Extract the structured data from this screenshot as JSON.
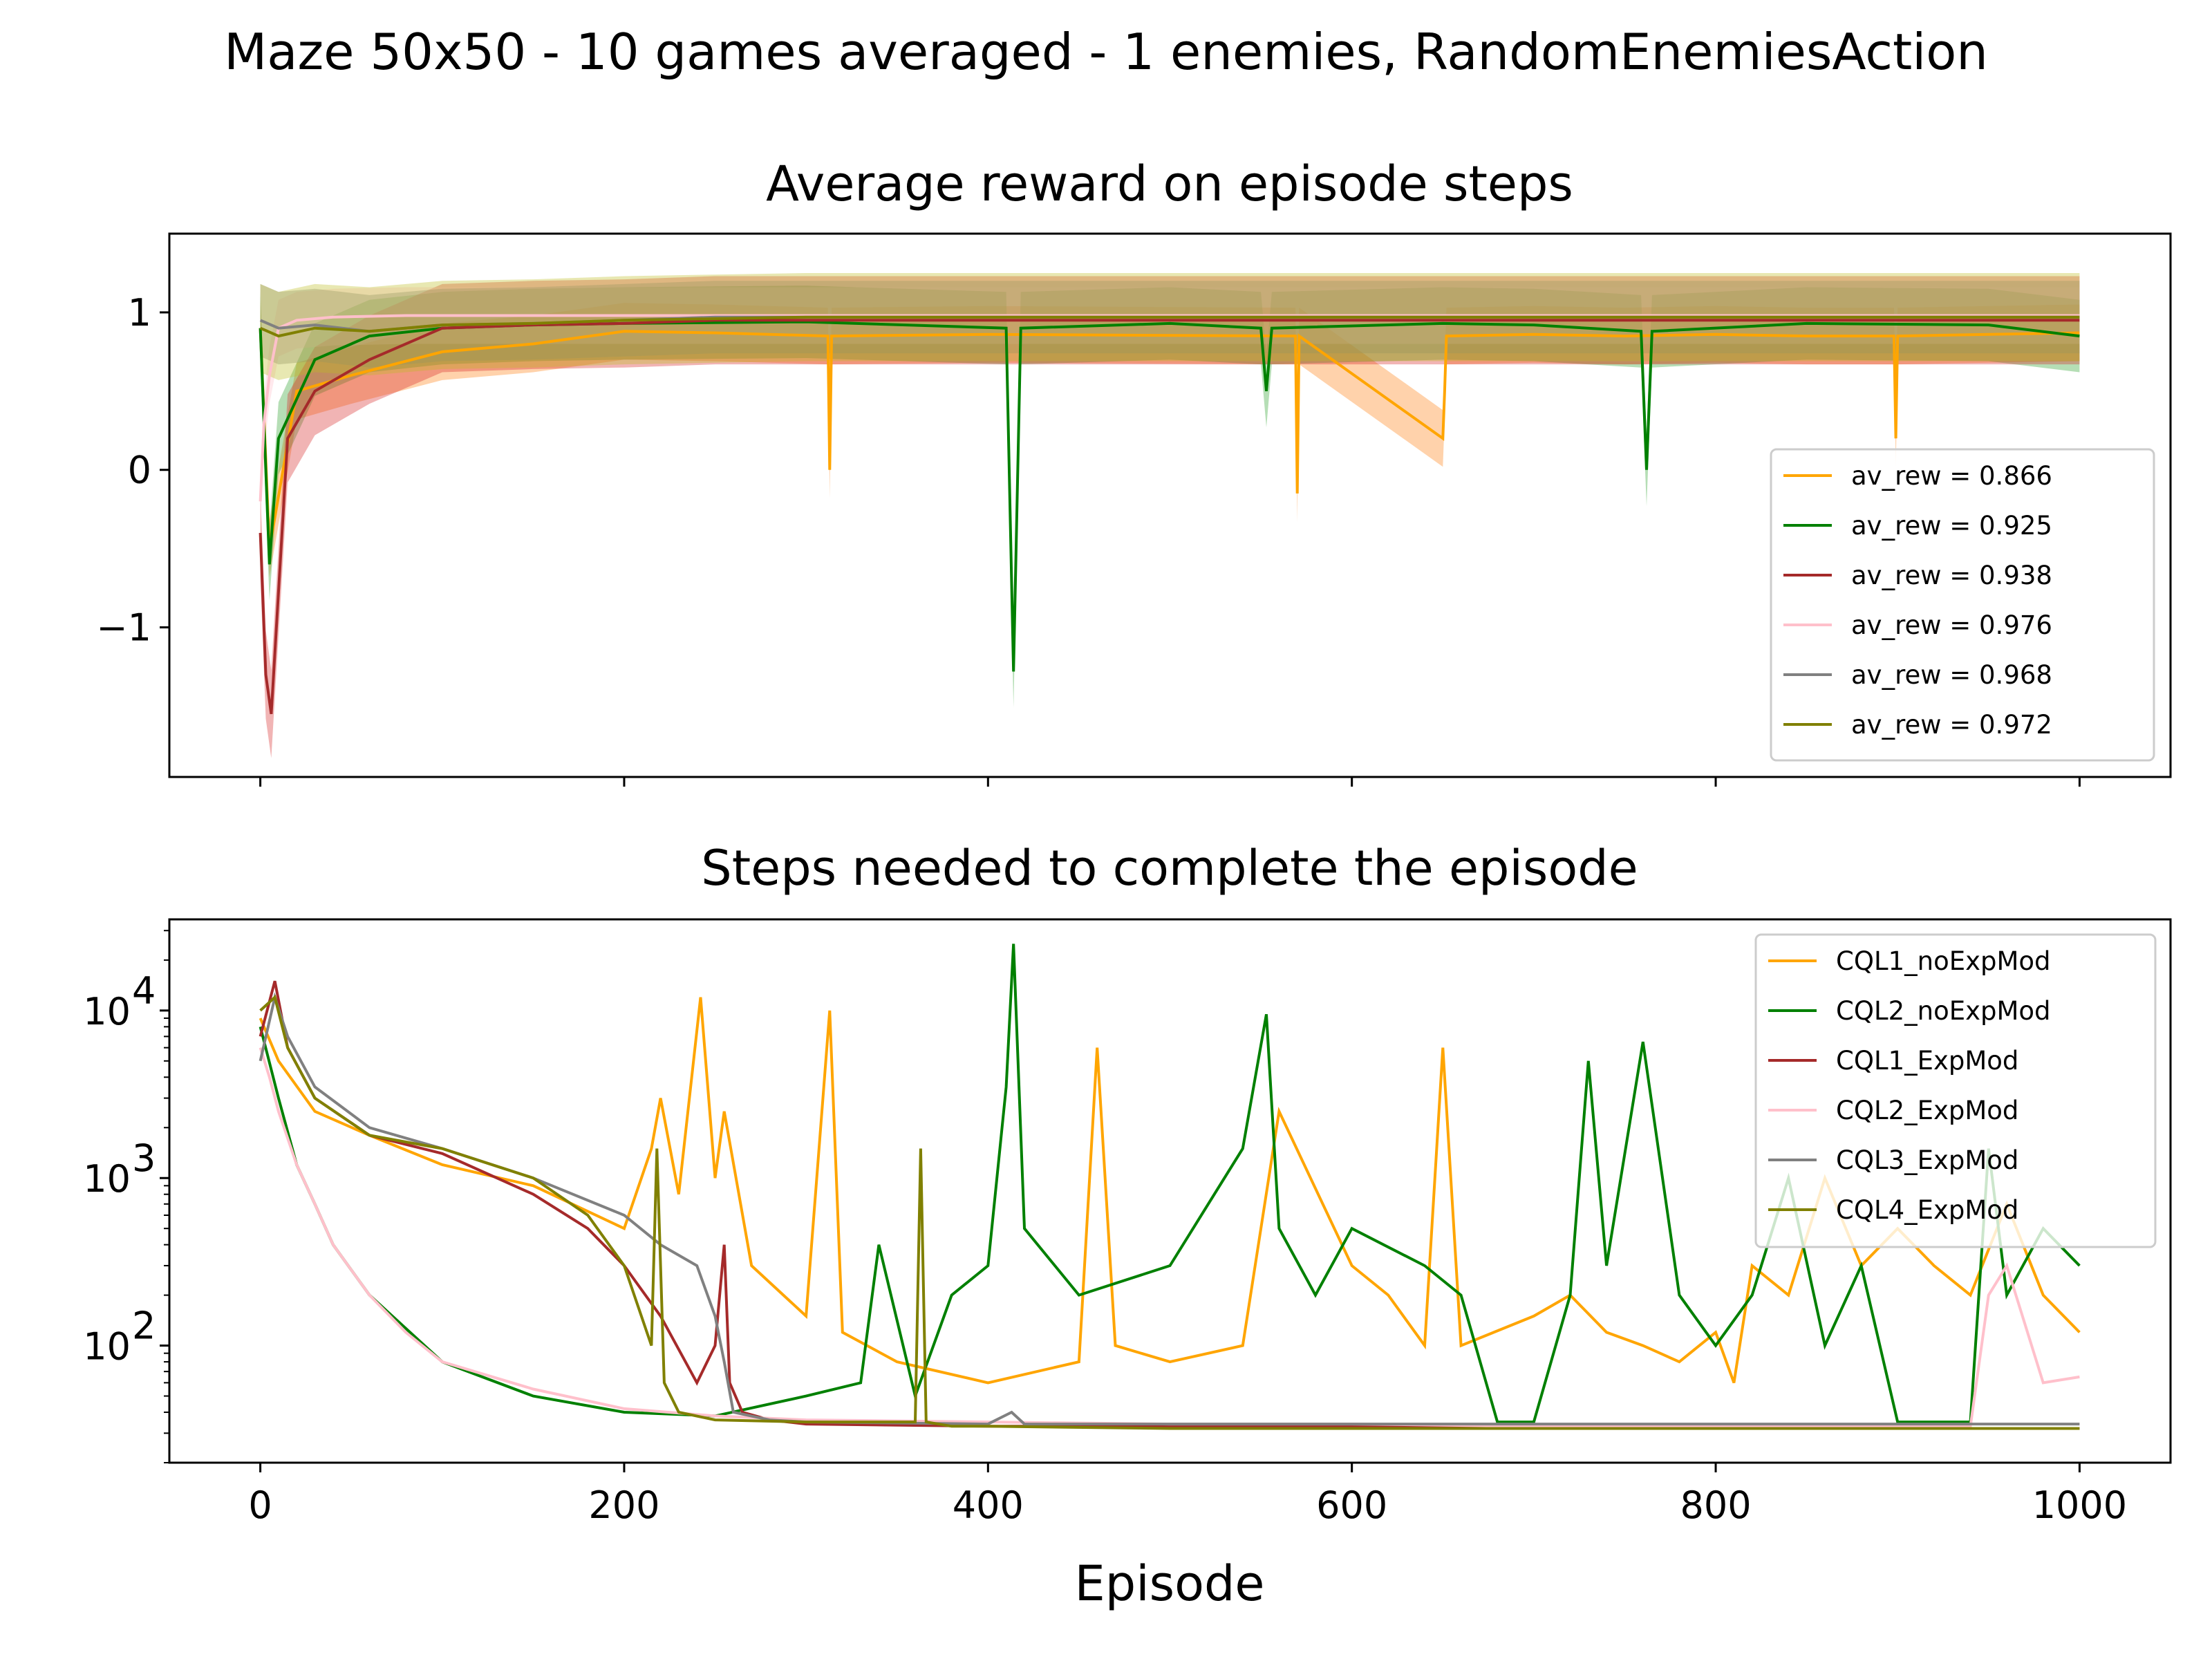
{
  "figure": {
    "suptitle": "Maze 50x50 - 10 games averaged - 1 enemies, RandomEnemiesAction"
  },
  "chart_data": [
    {
      "type": "line",
      "title": "Average reward on episode steps",
      "xlabel": "",
      "ylabel": "",
      "xlim": [
        -50,
        1050
      ],
      "ylim": [
        -1.95,
        1.5
      ],
      "yticks": [
        -1,
        0,
        1
      ],
      "ytick_labels": [
        "−1",
        "0",
        "1"
      ],
      "xticks": [
        0,
        200,
        400,
        600,
        800,
        1000
      ],
      "xtick_labels_visible": false,
      "shaded_bands": true,
      "legend_position": "lower-right",
      "series": [
        {
          "name": "av_rew = 0.866",
          "color": "#ffa500",
          "band_color": "#ff7f0e",
          "final_mean": 0.866,
          "x": [
            0,
            5,
            20,
            50,
            100,
            150,
            200,
            250,
            312,
            313,
            314,
            400,
            569,
            570,
            571,
            650,
            651,
            652,
            700,
            750,
            800,
            850,
            898,
            899,
            900,
            950,
            1000
          ],
          "y": [
            0.9,
            -0.5,
            0.5,
            0.6,
            0.75,
            0.8,
            0.88,
            0.87,
            0.85,
            0.0,
            0.85,
            0.86,
            0.85,
            -0.15,
            0.85,
            0.2,
            0.5,
            0.85,
            0.86,
            0.85,
            0.86,
            0.85,
            0.85,
            0.2,
            0.85,
            0.86,
            0.87
          ]
        },
        {
          "name": "av_rew = 0.925",
          "color": "#008000",
          "band_color": "#2ca02c",
          "final_mean": 0.925,
          "x": [
            0,
            5,
            10,
            30,
            60,
            100,
            150,
            200,
            300,
            410,
            414,
            418,
            500,
            550,
            553,
            556,
            650,
            700,
            759,
            762,
            765,
            850,
            950,
            1000
          ],
          "y": [
            0.9,
            -0.6,
            0.2,
            0.7,
            0.85,
            0.9,
            0.92,
            0.93,
            0.94,
            0.9,
            -1.28,
            0.9,
            0.93,
            0.9,
            0.5,
            0.9,
            0.93,
            0.92,
            0.88,
            0.0,
            0.88,
            0.93,
            0.92,
            0.85
          ]
        },
        {
          "name": "av_rew = 0.938",
          "color": "#a52a2a",
          "band_color": "#d62728",
          "final_mean": 0.938,
          "x": [
            0,
            3,
            6,
            15,
            30,
            60,
            100,
            150,
            200,
            250,
            300,
            400,
            500,
            600,
            700,
            800,
            900,
            1000
          ],
          "y": [
            -0.4,
            -1.3,
            -1.55,
            0.2,
            0.5,
            0.7,
            0.9,
            0.92,
            0.93,
            0.95,
            0.95,
            0.95,
            0.95,
            0.95,
            0.95,
            0.95,
            0.95,
            0.95
          ]
        },
        {
          "name": "av_rew = 0.976",
          "color": "#ffc0cb",
          "band_color": "#ffc0cb",
          "final_mean": 0.976,
          "x": [
            0,
            2,
            5,
            10,
            20,
            40,
            80,
            150,
            200,
            400,
            600,
            800,
            1000
          ],
          "y": [
            -0.2,
            0.3,
            0.6,
            0.9,
            0.95,
            0.97,
            0.98,
            0.98,
            0.98,
            0.98,
            0.98,
            0.98,
            0.98
          ]
        },
        {
          "name": "av_rew = 0.968",
          "color": "#808080",
          "band_color": "#7f7f7f",
          "final_mean": 0.968,
          "x": [
            0,
            10,
            30,
            60,
            100,
            150,
            200,
            250,
            300,
            400,
            600,
            800,
            1000
          ],
          "y": [
            0.95,
            0.9,
            0.92,
            0.88,
            0.92,
            0.93,
            0.95,
            0.97,
            0.97,
            0.97,
            0.97,
            0.97,
            0.97
          ]
        },
        {
          "name": "av_rew = 0.972",
          "color": "#808000",
          "band_color": "#bcbd22",
          "final_mean": 0.972,
          "x": [
            0,
            10,
            30,
            60,
            100,
            150,
            200,
            250,
            300,
            400,
            600,
            800,
            1000
          ],
          "y": [
            0.9,
            0.85,
            0.9,
            0.88,
            0.92,
            0.93,
            0.95,
            0.96,
            0.97,
            0.97,
            0.97,
            0.97,
            0.97
          ]
        }
      ]
    },
    {
      "type": "line",
      "title": "Steps needed to complete the episode",
      "xlabel": "Episode",
      "ylabel": "",
      "y_scale": "log",
      "xlim": [
        -50,
        1050
      ],
      "ylim": [
        20,
        35000
      ],
      "yticks": [
        100,
        1000,
        10000
      ],
      "ytick_labels": [
        [
          "10",
          "2"
        ],
        [
          "10",
          "3"
        ],
        [
          "10",
          "4"
        ]
      ],
      "xticks": [
        0,
        200,
        400,
        600,
        800,
        1000
      ],
      "xtick_labels": [
        "0",
        "200",
        "400",
        "600",
        "800",
        "1000"
      ],
      "legend_position": "upper-right",
      "series": [
        {
          "name": "CQL1_noExpMod",
          "color": "#ffa500",
          "x": [
            0,
            10,
            30,
            60,
            100,
            150,
            200,
            215,
            220,
            230,
            242,
            250,
            255,
            270,
            300,
            313,
            320,
            350,
            400,
            450,
            460,
            470,
            500,
            540,
            560,
            600,
            620,
            640,
            650,
            660,
            700,
            720,
            740,
            760,
            780,
            800,
            810,
            820,
            840,
            860,
            880,
            900,
            920,
            940,
            960,
            980,
            1000
          ],
          "y": [
            9000,
            5000,
            2500,
            1800,
            1200,
            900,
            500,
            1500,
            3000,
            800,
            12000,
            1000,
            2500,
            300,
            150,
            10000,
            120,
            80,
            60,
            80,
            6000,
            100,
            80,
            100,
            2500,
            300,
            200,
            100,
            6000,
            100,
            150,
            200,
            120,
            100,
            80,
            120,
            60,
            300,
            200,
            1000,
            300,
            500,
            300,
            200,
            700,
            200,
            120
          ]
        },
        {
          "name": "CQL2_noExpMod",
          "color": "#008000",
          "x": [
            0,
            10,
            20,
            30,
            40,
            60,
            100,
            150,
            200,
            250,
            300,
            330,
            340,
            360,
            380,
            400,
            410,
            414,
            420,
            450,
            500,
            540,
            553,
            560,
            580,
            600,
            640,
            660,
            680,
            700,
            720,
            730,
            740,
            760,
            780,
            800,
            820,
            840,
            860,
            880,
            900,
            920,
            940,
            950,
            960,
            980,
            1000
          ],
          "y": [
            8000,
            3000,
            1200,
            700,
            400,
            200,
            80,
            50,
            40,
            38,
            50,
            60,
            400,
            50,
            200,
            300,
            3500,
            25000,
            500,
            200,
            300,
            1500,
            9500,
            500,
            200,
            500,
            300,
            200,
            35,
            35,
            200,
            5000,
            300,
            6500,
            200,
            100,
            200,
            1000,
            100,
            300,
            35,
            35,
            35,
            1500,
            200,
            500,
            300
          ]
        },
        {
          "name": "CQL1_ExpMod",
          "color": "#a52a2a",
          "x": [
            0,
            8,
            15,
            30,
            60,
            100,
            150,
            180,
            200,
            220,
            240,
            250,
            255,
            258,
            265,
            280,
            300,
            400,
            600,
            800,
            1000
          ],
          "y": [
            7000,
            15000,
            6000,
            3000,
            1800,
            1400,
            800,
            500,
            300,
            150,
            60,
            100,
            400,
            60,
            40,
            36,
            34,
            33,
            33,
            32,
            32
          ]
        },
        {
          "name": "CQL2_ExpMod",
          "color": "#ffc0cb",
          "x": [
            0,
            5,
            10,
            20,
            30,
            40,
            60,
            80,
            100,
            150,
            200,
            250,
            300,
            400,
            500,
            600,
            700,
            800,
            900,
            940,
            950,
            960,
            980,
            1000
          ],
          "y": [
            6000,
            4000,
            2500,
            1200,
            700,
            400,
            200,
            120,
            80,
            55,
            42,
            38,
            36,
            35,
            34,
            34,
            33,
            33,
            33,
            33,
            200,
            300,
            60,
            65
          ]
        },
        {
          "name": "CQL3_ExpMod",
          "color": "#808080",
          "x": [
            0,
            8,
            15,
            30,
            60,
            100,
            150,
            200,
            220,
            240,
            250,
            255,
            260,
            280,
            300,
            400,
            413,
            420,
            500,
            600,
            700,
            800,
            900,
            1000
          ],
          "y": [
            5000,
            12000,
            7000,
            3500,
            2000,
            1500,
            1000,
            600,
            400,
            300,
            150,
            80,
            40,
            36,
            35,
            34,
            40,
            34,
            34,
            34,
            34,
            34,
            34,
            34
          ]
        },
        {
          "name": "CQL4_ExpMod",
          "color": "#808000",
          "x": [
            0,
            8,
            15,
            30,
            60,
            100,
            150,
            180,
            200,
            215,
            218,
            222,
            230,
            250,
            300,
            360,
            363,
            366,
            380,
            400,
            500,
            600,
            700,
            800,
            900,
            1000
          ],
          "y": [
            10000,
            12000,
            6000,
            3000,
            1800,
            1500,
            1000,
            600,
            300,
            100,
            1500,
            60,
            40,
            36,
            35,
            35,
            1500,
            35,
            33,
            33,
            32,
            32,
            32,
            32,
            32,
            32
          ]
        }
      ]
    }
  ]
}
